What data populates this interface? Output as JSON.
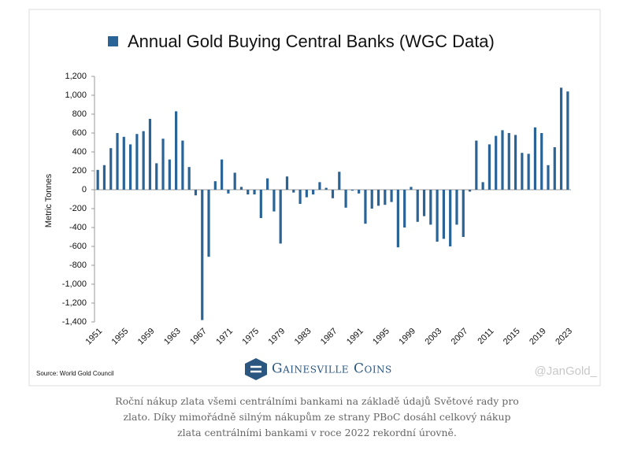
{
  "chart_data": {
    "type": "bar",
    "y_label": "Metric Tonnes",
    "series": [
      {
        "name": "Annual Gold Buying Central Banks (WGC Data)",
        "color": "#2a6496",
        "values": [
          210,
          260,
          440,
          600,
          560,
          480,
          590,
          620,
          750,
          280,
          540,
          320,
          830,
          520,
          240,
          -60,
          -1380,
          -710,
          90,
          320,
          -40,
          180,
          30,
          -50,
          -50,
          -300,
          120,
          -230,
          -570,
          140,
          -30,
          -150,
          -80,
          -50,
          80,
          20,
          -90,
          190,
          -190,
          -10,
          -40,
          -360,
          -200,
          -170,
          -160,
          -130,
          -610,
          -400,
          30,
          -340,
          -280,
          -370,
          -550,
          -520,
          -600,
          -370,
          -500,
          -20,
          520,
          80,
          480,
          570,
          630,
          600,
          580,
          390,
          380,
          660,
          600,
          260,
          450,
          1080,
          1040
        ]
      }
    ],
    "categories": [
      "1951",
      null,
      null,
      null,
      "1955",
      null,
      null,
      null,
      "1959",
      null,
      null,
      null,
      "1963",
      null,
      null,
      null,
      "1967",
      null,
      null,
      null,
      "1971",
      null,
      null,
      null,
      "1975",
      null,
      null,
      null,
      "1979",
      null,
      null,
      null,
      "1983",
      null,
      null,
      null,
      "1987",
      null,
      null,
      null,
      "1991",
      null,
      null,
      null,
      "1995",
      null,
      null,
      null,
      "1999",
      null,
      null,
      null,
      "2003",
      null,
      null,
      null,
      "2007",
      null,
      null,
      null,
      "2011",
      null,
      null,
      null,
      "2015",
      null,
      null,
      null,
      "2019",
      null,
      null,
      null,
      "2023"
    ],
    "ylim": [
      -1400,
      1200
    ],
    "yticks": [
      {
        "value": -1400,
        "label": "-1,400"
      },
      {
        "value": -1200,
        "label": "-1,200"
      },
      {
        "value": -1000,
        "label": "-1,000"
      },
      -800,
      -600,
      -400,
      -200,
      0,
      200,
      400,
      600,
      800,
      {
        "value": 1000,
        "label": "1,000"
      },
      {
        "value": 1200,
        "label": "1,200"
      }
    ],
    "source": "Source: World Gold Council",
    "branding": "Gainesville Coins",
    "watermark": "@JanGold_"
  },
  "caption": "Roční nákup zlata všemi centrálními bankami na základě údajů Světové rady pro zlato. Díky mimořádně silným nákupům ze strany PBoC dosáhl celkový nákup zlata centrálními bankami v roce 2022 rekordní úrovně."
}
